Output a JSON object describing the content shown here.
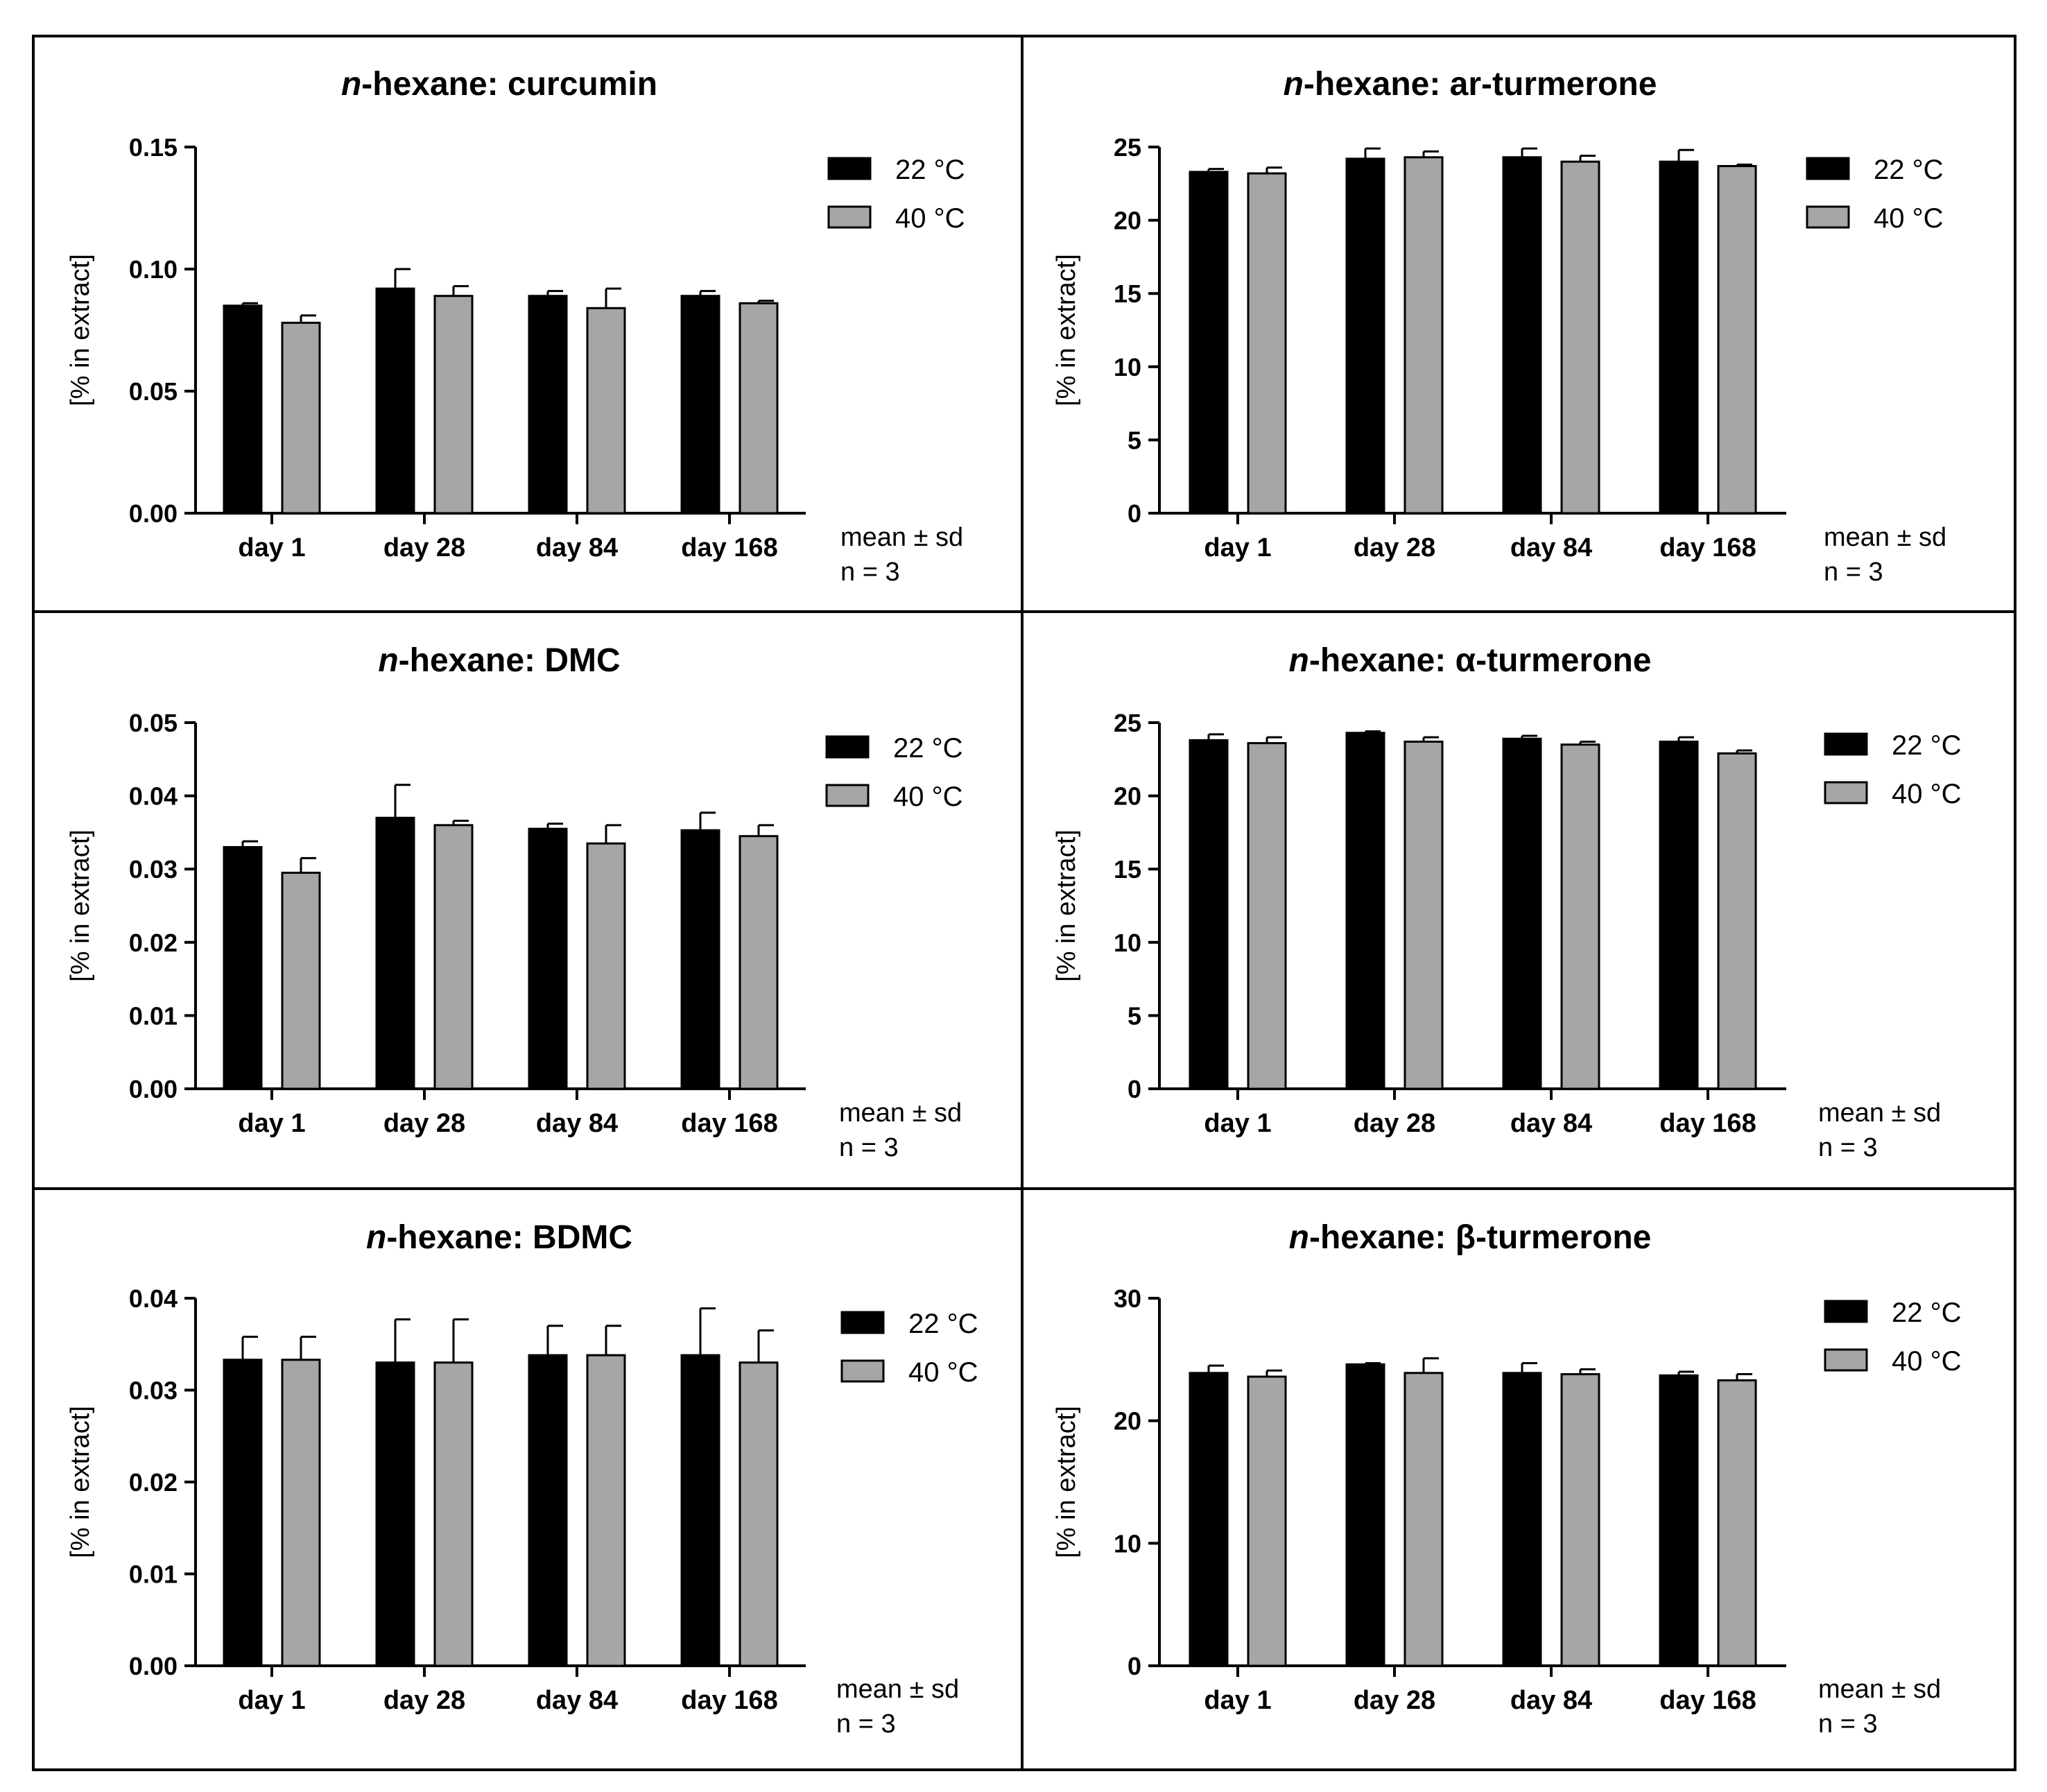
{
  "figure": {
    "title_prefix": "n",
    "legend_labels": [
      "22 °C",
      "40 °C"
    ],
    "footnote_line1": "mean ± sd",
    "footnote_line2": "n = 3",
    "ylabel": "[% in extract]",
    "colors": {
      "series_22": "#000000",
      "series_40": "#a6a6a6",
      "axis": "#000000",
      "frame": "#000000"
    }
  },
  "chart_data": [
    {
      "type": "bar",
      "title": "n-hexane: curcumin",
      "title_rest": "-hexane: curcumin",
      "categories": [
        "day 1",
        "day 28",
        "day 84",
        "day 168"
      ],
      "series": [
        {
          "name": "22 °C",
          "values": [
            0.085,
            0.092,
            0.089,
            0.089
          ],
          "sd": [
            0.001,
            0.008,
            0.002,
            0.002
          ]
        },
        {
          "name": "40 °C",
          "values": [
            0.078,
            0.089,
            0.084,
            0.086
          ],
          "sd": [
            0.003,
            0.004,
            0.008,
            0.001
          ]
        }
      ],
      "ylabel": "[% in extract]",
      "ylim": [
        0,
        0.15
      ],
      "yticks": [
        "0.00",
        "0.05",
        "0.10",
        "0.15"
      ],
      "ytick_values": [
        0,
        0.05,
        0.1,
        0.15
      ]
    },
    {
      "type": "bar",
      "title": "n-hexane: ar-turmerone",
      "title_rest": "-hexane: ar-turmerone",
      "categories": [
        "day 1",
        "day 28",
        "day 84",
        "day 168"
      ],
      "series": [
        {
          "name": "22 °C",
          "values": [
            23.3,
            24.2,
            24.3,
            24.0
          ],
          "sd": [
            0.2,
            0.7,
            0.6,
            0.8
          ]
        },
        {
          "name": "40 °C",
          "values": [
            23.2,
            24.3,
            24.0,
            23.7
          ],
          "sd": [
            0.4,
            0.4,
            0.4,
            0.1
          ]
        }
      ],
      "ylabel": "[% in extract]",
      "ylim": [
        0,
        25
      ],
      "yticks": [
        "0",
        "5",
        "10",
        "15",
        "20",
        "25"
      ],
      "ytick_values": [
        0,
        5,
        10,
        15,
        20,
        25
      ]
    },
    {
      "type": "bar",
      "title": "n-hexane: DMC",
      "title_rest": "-hexane: DMC",
      "categories": [
        "day 1",
        "day 28",
        "day 84",
        "day 168"
      ],
      "series": [
        {
          "name": "22 °C",
          "values": [
            0.033,
            0.037,
            0.0355,
            0.0353
          ],
          "sd": [
            0.0008,
            0.0045,
            0.0007,
            0.0024
          ]
        },
        {
          "name": "40 °C",
          "values": [
            0.0295,
            0.036,
            0.0335,
            0.0345
          ],
          "sd": [
            0.002,
            0.0006,
            0.0025,
            0.0015
          ]
        }
      ],
      "ylabel": "[% in extract]",
      "ylim": [
        0,
        0.05
      ],
      "yticks": [
        "0.00",
        "0.01",
        "0.02",
        "0.03",
        "0.04",
        "0.05"
      ],
      "ytick_values": [
        0,
        0.01,
        0.02,
        0.03,
        0.04,
        0.05
      ]
    },
    {
      "type": "bar",
      "title": "n-hexane: α-turmerone",
      "title_rest": "-hexane: α-turmerone",
      "categories": [
        "day 1",
        "day 28",
        "day 84",
        "day 168"
      ],
      "series": [
        {
          "name": "22 °C",
          "values": [
            23.8,
            24.3,
            23.9,
            23.7
          ],
          "sd": [
            0.4,
            0.1,
            0.2,
            0.3
          ]
        },
        {
          "name": "40 °C",
          "values": [
            23.6,
            23.7,
            23.5,
            22.9
          ],
          "sd": [
            0.4,
            0.3,
            0.2,
            0.2
          ]
        }
      ],
      "ylabel": "[% in extract]",
      "ylim": [
        0,
        25
      ],
      "yticks": [
        "0",
        "5",
        "10",
        "15",
        "20",
        "25"
      ],
      "ytick_values": [
        0,
        5,
        10,
        15,
        20,
        25
      ]
    },
    {
      "type": "bar",
      "title": "n-hexane: BDMC",
      "title_rest": "-hexane: BDMC",
      "categories": [
        "day 1",
        "day 28",
        "day 84",
        "day 168"
      ],
      "series": [
        {
          "name": "22 °C",
          "values": [
            0.0333,
            0.033,
            0.0338,
            0.0338
          ],
          "sd": [
            0.0025,
            0.0047,
            0.0032,
            0.0051
          ]
        },
        {
          "name": "40 °C",
          "values": [
            0.0333,
            0.033,
            0.0338,
            0.033
          ],
          "sd": [
            0.0025,
            0.0047,
            0.0032,
            0.0035
          ]
        }
      ],
      "ylabel": "[% in extract]",
      "ylim": [
        0,
        0.04
      ],
      "yticks": [
        "0.00",
        "0.01",
        "0.02",
        "0.03",
        "0.04"
      ],
      "ytick_values": [
        0,
        0.01,
        0.02,
        0.03,
        0.04
      ]
    },
    {
      "type": "bar",
      "title": "n-hexane: β-turmerone",
      "title_rest": "-hexane: β-turmerone",
      "categories": [
        "day 1",
        "day 28",
        "day 84",
        "day 168"
      ],
      "series": [
        {
          "name": "22 °C",
          "values": [
            23.9,
            24.6,
            23.9,
            23.7
          ],
          "sd": [
            0.6,
            0.1,
            0.8,
            0.3
          ]
        },
        {
          "name": "40 °C",
          "values": [
            23.6,
            23.9,
            23.8,
            23.3
          ],
          "sd": [
            0.5,
            1.2,
            0.4,
            0.5
          ]
        }
      ],
      "ylabel": "[% in extract]",
      "ylim": [
        0,
        30
      ],
      "yticks": [
        "0",
        "10",
        "20",
        "30"
      ],
      "ytick_values": [
        0,
        10,
        20,
        30
      ]
    }
  ]
}
